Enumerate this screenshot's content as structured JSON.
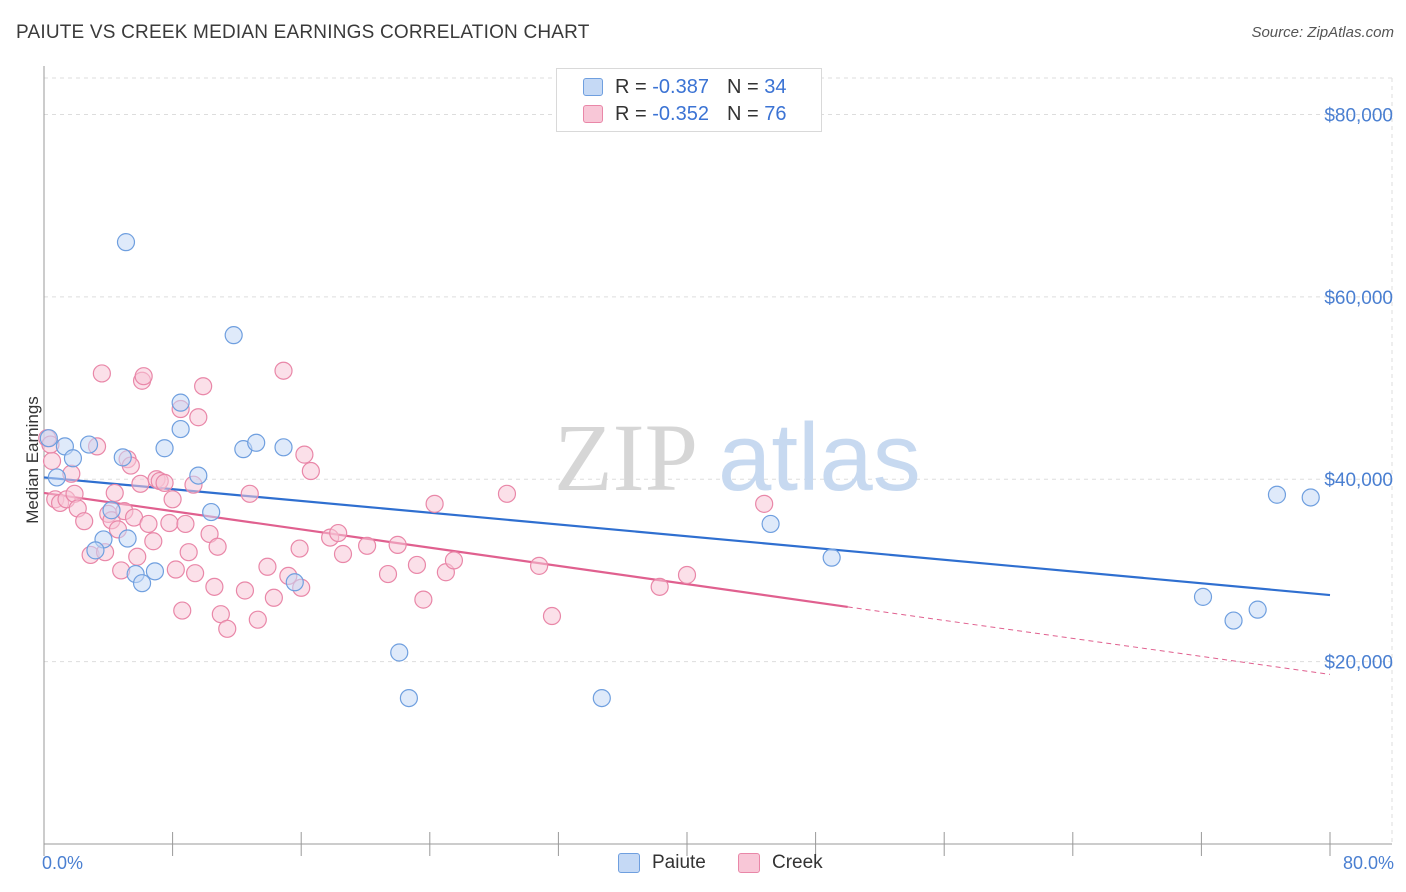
{
  "title": "PAIUTE VS CREEK MEDIAN EARNINGS CORRELATION CHART",
  "source": "Source: ZipAtlas.com",
  "watermark": {
    "zip": "ZIP",
    "atlas": "atlas"
  },
  "colors": {
    "paiute": "#6f9fdf",
    "paiute_fill": "#c5d9f5",
    "paiute_line": "#2f6fd0",
    "creek": "#e987a8",
    "creek_fill": "#f8c7d7",
    "creek_line": "#e0608f",
    "tick_text": "#4a7fd1",
    "grid": "#dddddd"
  },
  "legend": {
    "paiute": {
      "r_label": "R =",
      "r_value": "-0.387",
      "n_label": "N =",
      "n_value": "34"
    },
    "creek": {
      "r_label": "R =",
      "r_value": "-0.352",
      "n_label": "N =",
      "n_value": "76"
    }
  },
  "bottom_legend": [
    "Paiute",
    "Creek"
  ],
  "chart_data": {
    "type": "scatter",
    "title": "PAIUTE VS CREEK MEDIAN EARNINGS CORRELATION CHART",
    "xlabel": "",
    "ylabel": "Median Earnings",
    "xlim": [
      0,
      80
    ],
    "ylim": [
      0,
      84000
    ],
    "x_tick_labels": [
      "0.0%",
      "80.0%"
    ],
    "y_ticks": [
      20000,
      40000,
      60000,
      80000
    ],
    "y_tick_labels": [
      "$20,000",
      "$40,000",
      "$60,000",
      "$80,000"
    ],
    "grid": true,
    "legend_position": "top-center",
    "series": [
      {
        "name": "Paiute",
        "r": -0.387,
        "n": 34,
        "points": [
          [
            0.3,
            44500
          ],
          [
            1.3,
            43600
          ],
          [
            1.8,
            42300
          ],
          [
            2.8,
            43800
          ],
          [
            3.7,
            33400
          ],
          [
            4.2,
            36600
          ],
          [
            4.9,
            42400
          ],
          [
            5.1,
            66000
          ],
          [
            5.2,
            33500
          ],
          [
            5.7,
            29600
          ],
          [
            6.1,
            28600
          ],
          [
            6.9,
            29900
          ],
          [
            7.5,
            43400
          ],
          [
            8.5,
            48400
          ],
          [
            8.5,
            45500
          ],
          [
            9.6,
            40400
          ],
          [
            10.4,
            36400
          ],
          [
            11.8,
            55800
          ],
          [
            12.4,
            43300
          ],
          [
            13.2,
            44000
          ],
          [
            14.9,
            43500
          ],
          [
            15.6,
            28700
          ],
          [
            22.1,
            21000
          ],
          [
            22.7,
            16000
          ],
          [
            34.7,
            16000
          ],
          [
            45.2,
            35100
          ],
          [
            49.0,
            31400
          ],
          [
            72.1,
            27100
          ],
          [
            74.0,
            24500
          ],
          [
            75.5,
            25700
          ],
          [
            76.7,
            38300
          ],
          [
            78.8,
            38000
          ],
          [
            0.8,
            40200
          ],
          [
            3.2,
            32200
          ]
        ],
        "trend": {
          "x": [
            0,
            80
          ],
          "y": [
            40200,
            27300
          ]
        }
      },
      {
        "name": "Creek",
        "r": -0.352,
        "n": 76,
        "points": [
          [
            0.2,
            44500
          ],
          [
            0.5,
            42000
          ],
          [
            0.7,
            37800
          ],
          [
            1.0,
            37400
          ],
          [
            1.4,
            37800
          ],
          [
            1.7,
            40600
          ],
          [
            1.9,
            38400
          ],
          [
            2.1,
            36800
          ],
          [
            2.5,
            35400
          ],
          [
            2.9,
            31700
          ],
          [
            3.3,
            43600
          ],
          [
            3.6,
            51600
          ],
          [
            3.8,
            32000
          ],
          [
            4.0,
            36200
          ],
          [
            4.2,
            35500
          ],
          [
            4.4,
            38500
          ],
          [
            4.6,
            34500
          ],
          [
            4.8,
            30000
          ],
          [
            5.0,
            36500
          ],
          [
            5.2,
            42200
          ],
          [
            5.4,
            41500
          ],
          [
            5.6,
            35800
          ],
          [
            5.8,
            31500
          ],
          [
            6.0,
            39500
          ],
          [
            6.1,
            50800
          ],
          [
            6.2,
            51300
          ],
          [
            6.5,
            35100
          ],
          [
            6.8,
            33200
          ],
          [
            7.0,
            40000
          ],
          [
            7.2,
            39800
          ],
          [
            7.5,
            39600
          ],
          [
            7.8,
            35200
          ],
          [
            8.0,
            37800
          ],
          [
            8.2,
            30100
          ],
          [
            8.5,
            47700
          ],
          [
            8.6,
            25600
          ],
          [
            8.8,
            35100
          ],
          [
            9.0,
            32000
          ],
          [
            9.3,
            39400
          ],
          [
            9.6,
            46800
          ],
          [
            9.9,
            50200
          ],
          [
            10.3,
            34000
          ],
          [
            10.6,
            28200
          ],
          [
            10.8,
            32600
          ],
          [
            11.0,
            25200
          ],
          [
            11.4,
            23600
          ],
          [
            12.5,
            27800
          ],
          [
            12.8,
            38400
          ],
          [
            13.3,
            24600
          ],
          [
            13.9,
            30400
          ],
          [
            14.3,
            27000
          ],
          [
            14.9,
            51900
          ],
          [
            15.2,
            29400
          ],
          [
            15.9,
            32400
          ],
          [
            16.0,
            28100
          ],
          [
            16.2,
            42700
          ],
          [
            16.6,
            40900
          ],
          [
            17.8,
            33600
          ],
          [
            18.3,
            34100
          ],
          [
            18.6,
            31800
          ],
          [
            20.1,
            32700
          ],
          [
            21.4,
            29600
          ],
          [
            22.0,
            32800
          ],
          [
            23.2,
            30600
          ],
          [
            23.6,
            26800
          ],
          [
            24.3,
            37300
          ],
          [
            25.0,
            29800
          ],
          [
            25.5,
            31100
          ],
          [
            28.8,
            38400
          ],
          [
            30.8,
            30500
          ],
          [
            31.6,
            25000
          ],
          [
            38.3,
            28200
          ],
          [
            40.0,
            29500
          ],
          [
            44.8,
            37300
          ],
          [
            9.4,
            29700
          ],
          [
            0.4,
            43800
          ]
        ],
        "trend": {
          "x": [
            0,
            50
          ],
          "y": [
            38500,
            26000
          ]
        },
        "trend_extension": {
          "x": [
            50,
            80
          ],
          "y": [
            26000,
            18600
          ]
        }
      }
    ]
  }
}
